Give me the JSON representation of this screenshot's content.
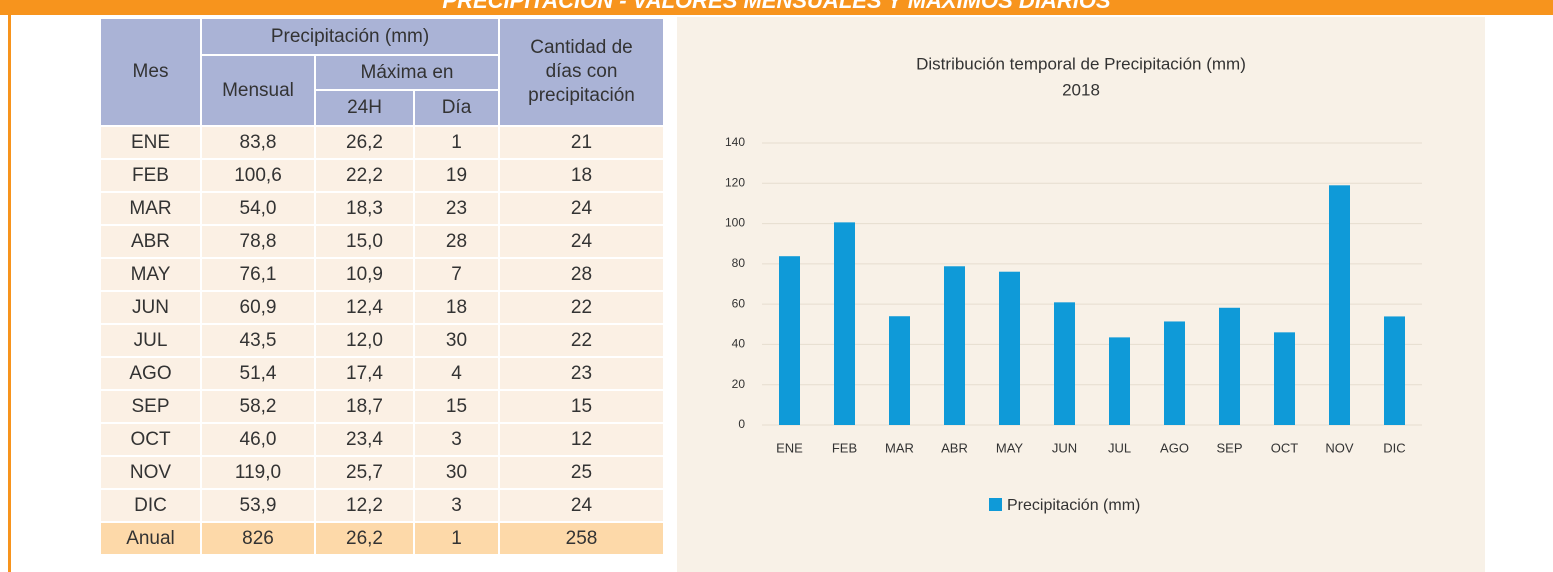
{
  "header": {
    "title": "PRECIPITACIÓN - VALORES MENSUALES Y MÁXIMOS DIARIOS"
  },
  "table": {
    "headers": {
      "mes": "Mes",
      "precip": "Precipitación (mm)",
      "mensual": "Mensual",
      "maxima": "Máxima en",
      "h24": "24H",
      "dia": "Día",
      "cantidad": "Cantidad de días con precipitación"
    },
    "rows": [
      [
        "ENE",
        "83,8",
        "26,2",
        "1",
        "21"
      ],
      [
        "FEB",
        "100,6",
        "22,2",
        "19",
        "18"
      ],
      [
        "MAR",
        "54,0",
        "18,3",
        "23",
        "24"
      ],
      [
        "ABR",
        "78,8",
        "15,0",
        "28",
        "24"
      ],
      [
        "MAY",
        "76,1",
        "10,9",
        "7",
        "28"
      ],
      [
        "JUN",
        "60,9",
        "12,4",
        "18",
        "22"
      ],
      [
        "JUL",
        "43,5",
        "12,0",
        "30",
        "22"
      ],
      [
        "AGO",
        "51,4",
        "17,4",
        "4",
        "23"
      ],
      [
        "SEP",
        "58,2",
        "18,7",
        "15",
        "15"
      ],
      [
        "OCT",
        "46,0",
        "23,4",
        "3",
        "12"
      ],
      [
        "NOV",
        "119,0",
        "25,7",
        "30",
        "25"
      ],
      [
        "DIC",
        "53,9",
        "12,2",
        "3",
        "24"
      ]
    ],
    "total": [
      "Anual",
      "826",
      "26,2",
      "1",
      "258"
    ]
  },
  "chart_data": {
    "type": "bar",
    "title": "Distribución temporal de Precipitación (mm)",
    "subtitle": "2018",
    "categories": [
      "ENE",
      "FEB",
      "MAR",
      "ABR",
      "MAY",
      "JUN",
      "JUL",
      "AGO",
      "SEP",
      "OCT",
      "NOV",
      "DIC"
    ],
    "series": [
      {
        "name": "Precipitación (mm)",
        "color": "#0f9ad8",
        "values": [
          83.8,
          100.6,
          54.0,
          78.8,
          76.1,
          60.9,
          43.5,
          51.4,
          58.2,
          46.0,
          119.0,
          53.9
        ]
      }
    ],
    "ylim": [
      0,
      140
    ],
    "yticks": [
      0,
      20,
      40,
      60,
      80,
      100,
      120,
      140
    ],
    "grid": true,
    "legend": "bottom"
  }
}
